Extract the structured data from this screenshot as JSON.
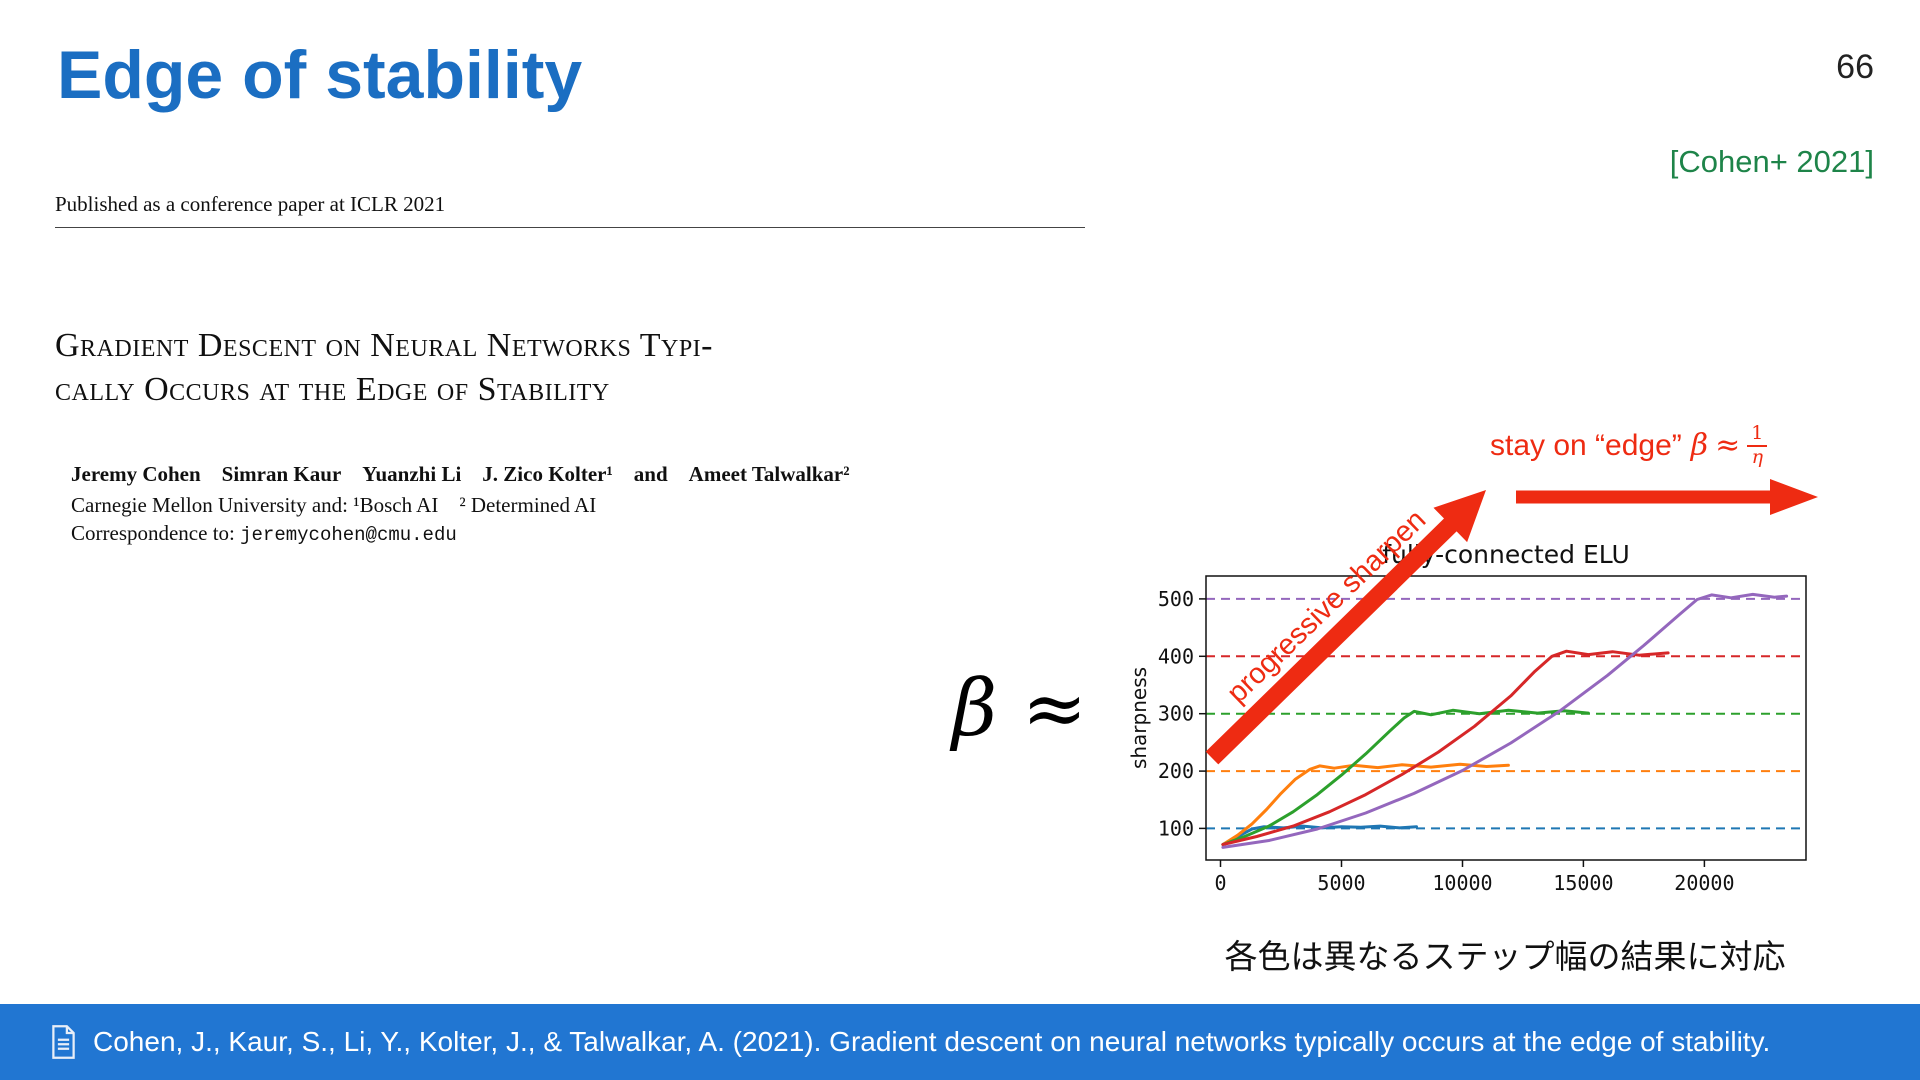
{
  "slide": {
    "page_number": "66",
    "title": "Edge of stability",
    "citation": "[Cohen+ 2021]",
    "caption_jp": "各色は異なるステップ幅の結果に対応"
  },
  "colors": {
    "title_blue": "#1b6ec2",
    "citation_green": "#1e8449",
    "annotation_red": "#ee2b12",
    "footer_blue": "#2176d2"
  },
  "paper": {
    "published_line": "Published as a conference paper at ICLR 2021",
    "title_line1": "Gradient Descent on Neural Networks Typi-",
    "title_line2": "cally Occurs at the Edge of Stability",
    "authors": "Jeremy Cohen  Simran Kaur  Yuanzhi Li  J. Zico Kolter¹  and  Ameet Talwalkar²",
    "affiliation": "Carnegie Mellon University and: ¹Bosch AI  ² Determined AI",
    "correspondence_label": "Correspondence to:",
    "correspondence_email": "jeremycohen@cmu.edu"
  },
  "annotations": {
    "progressive_sharpen": "progressive sharpen",
    "stay_on_edge": "stay on “edge”",
    "beta": "β",
    "approx": "≈",
    "frac_numerator": "1",
    "frac_denominator": "η",
    "beta_large": "β ≈"
  },
  "footer": {
    "reference": "Cohen, J., Kaur, S., Li, Y., Kolter, J., & Talwalkar, A. (2021). Gradient descent on neural networks typically occurs at the edge of stability."
  },
  "chart_data": {
    "type": "line",
    "title": "fully-connected ELU",
    "xlabel": "",
    "ylabel": "sharpness",
    "xlim": [
      -600,
      24200
    ],
    "ylim": [
      45,
      540
    ],
    "xticks": [
      0,
      5000,
      10000,
      15000,
      20000
    ],
    "yticks": [
      100,
      200,
      300,
      400,
      500
    ],
    "grid": false,
    "legend": "none (each color = a different gradient-descent step size; dashed line of matching color marks its plateau 2/η)",
    "series": [
      {
        "name": "blue",
        "color": "#1f77b4",
        "plateau": 100,
        "points": [
          [
            100,
            72
          ],
          [
            500,
            80
          ],
          [
            900,
            90
          ],
          [
            1300,
            99
          ],
          [
            1800,
            103
          ],
          [
            2600,
            101
          ],
          [
            3400,
            104
          ],
          [
            4200,
            101
          ],
          [
            5000,
            103
          ],
          [
            5800,
            102
          ],
          [
            6600,
            104
          ],
          [
            7400,
            101
          ],
          [
            8100,
            103
          ]
        ]
      },
      {
        "name": "orange",
        "color": "#ff7f0e",
        "plateau": 200,
        "points": [
          [
            100,
            72
          ],
          [
            700,
            88
          ],
          [
            1300,
            108
          ],
          [
            1900,
            133
          ],
          [
            2500,
            161
          ],
          [
            3100,
            186
          ],
          [
            3700,
            203
          ],
          [
            4100,
            209
          ],
          [
            4700,
            205
          ],
          [
            5500,
            210
          ],
          [
            6500,
            206
          ],
          [
            7500,
            211
          ],
          [
            8700,
            207
          ],
          [
            9900,
            212
          ],
          [
            11000,
            208
          ],
          [
            11900,
            210
          ]
        ]
      },
      {
        "name": "green",
        "color": "#2ca02c",
        "plateau": 300,
        "points": [
          [
            100,
            72
          ],
          [
            1000,
            86
          ],
          [
            2000,
            104
          ],
          [
            3000,
            129
          ],
          [
            4000,
            159
          ],
          [
            5000,
            193
          ],
          [
            6000,
            230
          ],
          [
            7000,
            270
          ],
          [
            7600,
            293
          ],
          [
            8000,
            304
          ],
          [
            8700,
            298
          ],
          [
            9600,
            306
          ],
          [
            10700,
            300
          ],
          [
            11900,
            306
          ],
          [
            13100,
            301
          ],
          [
            14200,
            305
          ],
          [
            15200,
            301
          ]
        ]
      },
      {
        "name": "red",
        "color": "#d62728",
        "plateau": 400,
        "points": [
          [
            100,
            72
          ],
          [
            1500,
            86
          ],
          [
            3000,
            104
          ],
          [
            4500,
            129
          ],
          [
            6000,
            159
          ],
          [
            7500,
            194
          ],
          [
            9000,
            233
          ],
          [
            10500,
            278
          ],
          [
            12000,
            331
          ],
          [
            13000,
            374
          ],
          [
            13700,
            400
          ],
          [
            14300,
            409
          ],
          [
            15200,
            403
          ],
          [
            16200,
            408
          ],
          [
            17300,
            402
          ],
          [
            18500,
            406
          ]
        ]
      },
      {
        "name": "purple",
        "color": "#9467bd",
        "plateau": 500,
        "points": [
          [
            100,
            67
          ],
          [
            2000,
            79
          ],
          [
            4000,
            99
          ],
          [
            6000,
            127
          ],
          [
            8000,
            161
          ],
          [
            10000,
            201
          ],
          [
            12000,
            249
          ],
          [
            14000,
            304
          ],
          [
            16000,
            367
          ],
          [
            17500,
            419
          ],
          [
            19000,
            474
          ],
          [
            19700,
            499
          ],
          [
            20300,
            507
          ],
          [
            21100,
            502
          ],
          [
            22000,
            508
          ],
          [
            22900,
            503
          ],
          [
            23400,
            505
          ]
        ]
      }
    ]
  }
}
